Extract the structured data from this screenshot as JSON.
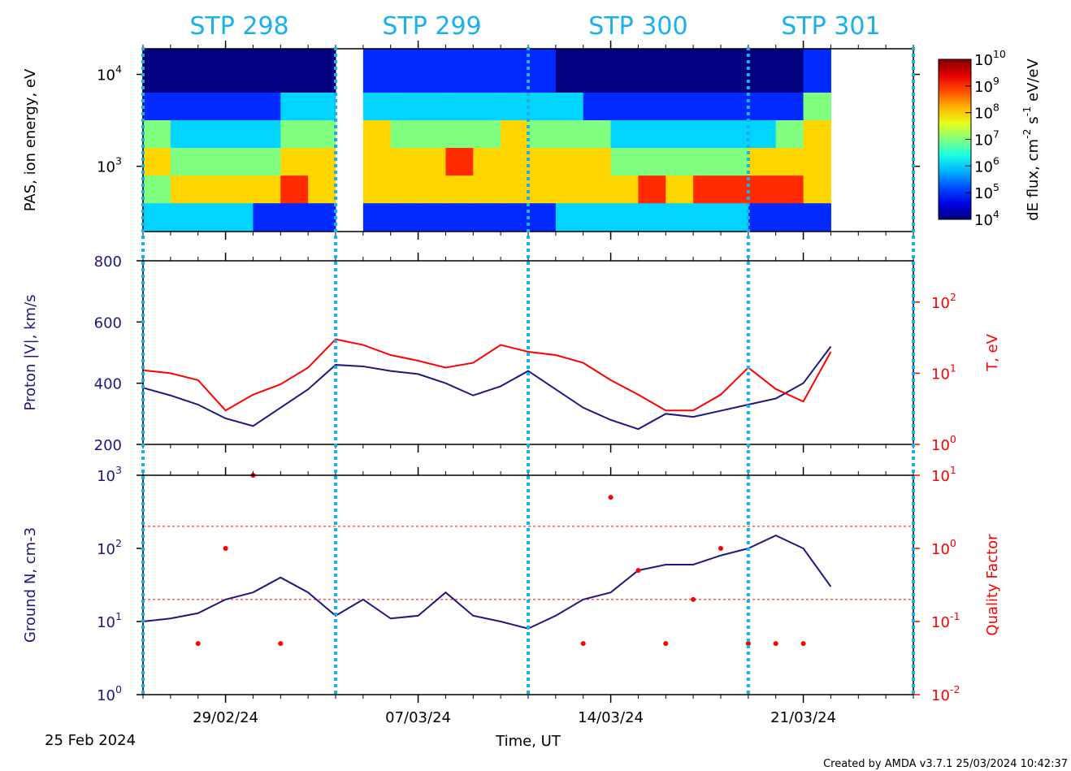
{
  "chart_data": [
    {
      "type": "heatmap",
      "ylabel": "PAS, ion energy, eV",
      "log_y": true,
      "ylim": [
        195,
        19000
      ],
      "yticks": [
        {
          "value": 1000,
          "label": "10^3"
        },
        {
          "value": 10000,
          "label": "10^4"
        }
      ],
      "xlim": [
        "2024-02-26",
        "2024-03-25"
      ],
      "xbins": [
        "2024-02-26",
        "2024-02-27",
        "2024-02-28",
        "2024-02-29",
        "2024-03-01",
        "2024-03-02",
        "2024-03-03",
        "2024-03-04",
        "2024-03-05",
        "2024-03-06",
        "2024-03-07",
        "2024-03-08",
        "2024-03-09",
        "2024-03-10",
        "2024-03-11",
        "2024-03-12",
        "2024-03-13",
        "2024-03-14",
        "2024-03-15",
        "2024-03-16",
        "2024-03-17",
        "2024-03-18",
        "2024-03-19",
        "2024-03-20",
        "2024-03-21",
        "2024-03-22",
        "2024-03-23",
        "2024-03-24",
        "2024-03-25"
      ],
      "ybins": [
        195,
        400,
        800,
        1600,
        3200,
        6400,
        19000
      ],
      "z": [
        [
          1000000.0,
          1000000.0,
          1000000.0,
          1000000.0,
          100000.0,
          100000.0,
          100000.0,
          null,
          100000.0,
          100000.0,
          100000.0,
          100000.0,
          100000.0,
          100000.0,
          100000.0,
          1000000.0,
          1000000.0,
          1000000.0,
          1000000.0,
          1000000.0,
          1000000.0,
          1000000.0,
          100000.0,
          100000.0,
          100000.0,
          null,
          null,
          null
        ],
        [
          10000000.0,
          100000000.0,
          100000000.0,
          100000000.0,
          100000000.0,
          1000000000.0,
          100000000.0,
          null,
          100000000.0,
          100000000.0,
          100000000.0,
          100000000.0,
          100000000.0,
          100000000.0,
          100000000.0,
          100000000.0,
          100000000.0,
          100000000.0,
          1000000000.0,
          100000000.0,
          1000000000.0,
          1000000000.0,
          1000000000.0,
          1000000000.0,
          100000000.0,
          null,
          null,
          null
        ],
        [
          100000000.0,
          10000000.0,
          10000000.0,
          10000000.0,
          10000000.0,
          100000000.0,
          100000000.0,
          null,
          100000000.0,
          100000000.0,
          100000000.0,
          1000000000.0,
          100000000.0,
          100000000.0,
          100000000.0,
          100000000.0,
          100000000.0,
          10000000.0,
          10000000.0,
          10000000.0,
          10000000.0,
          10000000.0,
          100000000.0,
          100000000.0,
          100000000.0,
          null,
          null,
          null
        ],
        [
          10000000.0,
          1000000.0,
          1000000.0,
          1000000.0,
          1000000.0,
          10000000.0,
          10000000.0,
          null,
          100000000.0,
          10000000.0,
          10000000.0,
          10000000.0,
          10000000.0,
          100000000.0,
          10000000.0,
          10000000.0,
          10000000.0,
          1000000.0,
          1000000.0,
          1000000.0,
          1000000.0,
          1000000.0,
          1000000.0,
          10000000.0,
          100000000.0,
          null,
          null,
          null
        ],
        [
          100000.0,
          100000.0,
          100000.0,
          100000.0,
          100000.0,
          1000000.0,
          1000000.0,
          null,
          1000000.0,
          1000000.0,
          1000000.0,
          1000000.0,
          1000000.0,
          1000000.0,
          1000000.0,
          1000000.0,
          100000.0,
          100000.0,
          100000.0,
          100000.0,
          100000.0,
          100000.0,
          100000.0,
          100000.0,
          10000000.0,
          null,
          null,
          null
        ],
        [
          10000.0,
          10000.0,
          10000.0,
          10000.0,
          10000.0,
          10000.0,
          10000.0,
          null,
          100000.0,
          100000.0,
          100000.0,
          100000.0,
          100000.0,
          100000.0,
          100000.0,
          10000.0,
          10000.0,
          10000.0,
          10000.0,
          10000.0,
          10000.0,
          10000.0,
          10000.0,
          10000.0,
          100000.0,
          null,
          null,
          null
        ]
      ],
      "colorbar_label": "dE flux, cm^-2 s^-1 eV/eV",
      "zlim": [
        10000,
        10000000000
      ],
      "zticks": [
        {
          "value": 10000,
          "label": "10^4"
        },
        {
          "value": 100000,
          "label": "10^5"
        },
        {
          "value": 1000000,
          "label": "10^6"
        },
        {
          "value": 10000000,
          "label": "10^7"
        },
        {
          "value": 100000000,
          "label": "10^8"
        },
        {
          "value": 1000000000,
          "label": "10^9"
        },
        {
          "value": 10000000000,
          "label": "10^10"
        }
      ],
      "colormap": "jet",
      "stp_color": "#1ab0e8",
      "stp_periods": [
        {
          "label": "STP 298",
          "start": "2024-02-26",
          "end": "2024-03-04"
        },
        {
          "label": "STP 299",
          "start": "2024-03-04",
          "end": "2024-03-11"
        },
        {
          "label": "STP 300",
          "start": "2024-03-11",
          "end": "2024-03-19"
        },
        {
          "label": "STP 301",
          "start": "2024-03-19",
          "end": "2024-03-25"
        }
      ]
    },
    {
      "type": "line",
      "ylabel": "Proton |V|, km/s",
      "y2label": "T, eV",
      "xlim": [
        "2024-02-26",
        "2024-03-25"
      ],
      "x": [
        "2024-02-26",
        "2024-02-27",
        "2024-02-28",
        "2024-02-29",
        "2024-03-01",
        "2024-03-02",
        "2024-03-03",
        "2024-03-04",
        "2024-03-05",
        "2024-03-06",
        "2024-03-07",
        "2024-03-08",
        "2024-03-09",
        "2024-03-10",
        "2024-03-11",
        "2024-03-12",
        "2024-03-13",
        "2024-03-14",
        "2024-03-15",
        "2024-03-16",
        "2024-03-17",
        "2024-03-18",
        "2024-03-19",
        "2024-03-20",
        "2024-03-21",
        "2024-03-22"
      ],
      "ylim": [
        200,
        800
      ],
      "yticks": [
        200,
        400,
        600,
        800
      ],
      "log_y2": true,
      "y2lim": [
        1,
        380
      ],
      "y2ticks": [
        {
          "value": 1,
          "label": "10^0"
        },
        {
          "value": 10,
          "label": "10^1"
        },
        {
          "value": 100,
          "label": "10^2"
        }
      ],
      "series": [
        {
          "color": "#1a1a80",
          "axis": "y",
          "values": [
            385,
            360,
            330,
            285,
            260,
            320,
            380,
            460,
            455,
            440,
            430,
            400,
            360,
            390,
            440,
            380,
            320,
            280,
            250,
            300,
            290,
            310,
            330,
            350,
            400,
            520
          ]
        },
        {
          "color": "#ff0000",
          "axis": "y2",
          "values": [
            11,
            10,
            8,
            3,
            5,
            7,
            12,
            30,
            25,
            18,
            15,
            12,
            14,
            25,
            20,
            18,
            14,
            8,
            5,
            3,
            3,
            5,
            12,
            6,
            4,
            20
          ]
        }
      ]
    },
    {
      "type": "line",
      "ylabel": "Ground N, cm-3",
      "y2label": "Quality Factor",
      "xlabel": "Time, UT",
      "start_label": "25 Feb 2024",
      "xlim": [
        "2024-02-26",
        "2024-03-25"
      ],
      "xticks": [
        {
          "value": "2024-02-29",
          "label": "29/02/24"
        },
        {
          "value": "2024-03-07",
          "label": "07/03/24"
        },
        {
          "value": "2024-03-14",
          "label": "14/03/24"
        },
        {
          "value": "2024-03-21",
          "label": "21/03/24"
        }
      ],
      "x": [
        "2024-02-26",
        "2024-02-27",
        "2024-02-28",
        "2024-02-29",
        "2024-03-01",
        "2024-03-02",
        "2024-03-03",
        "2024-03-04",
        "2024-03-05",
        "2024-03-06",
        "2024-03-07",
        "2024-03-08",
        "2024-03-09",
        "2024-03-10",
        "2024-03-11",
        "2024-03-12",
        "2024-03-13",
        "2024-03-14",
        "2024-03-15",
        "2024-03-16",
        "2024-03-17",
        "2024-03-18",
        "2024-03-19",
        "2024-03-20",
        "2024-03-21",
        "2024-03-22"
      ],
      "log_y": true,
      "ylim": [
        1,
        1000
      ],
      "yticks": [
        {
          "value": 1,
          "label": "10^0"
        },
        {
          "value": 10,
          "label": "10^1"
        },
        {
          "value": 100,
          "label": "10^2"
        },
        {
          "value": 1000,
          "label": "10^3"
        }
      ],
      "log_y2": true,
      "y2lim": [
        0.01,
        10
      ],
      "y2ticks": [
        {
          "value": 0.01,
          "label": "10^-2"
        },
        {
          "value": 0.1,
          "label": "10^-1"
        },
        {
          "value": 1,
          "label": "10^0"
        },
        {
          "value": 10,
          "label": "10^1"
        }
      ],
      "reference_lines": [
        0.2,
        2
      ],
      "series": [
        {
          "color": "#1a1a80",
          "axis": "y",
          "values": [
            10,
            11,
            13,
            20,
            25,
            40,
            25,
            12,
            20,
            11,
            12,
            25,
            12,
            10,
            8,
            12,
            20,
            25,
            50,
            60,
            60,
            80,
            100,
            150,
            100,
            30
          ]
        },
        {
          "color": "#ff0000",
          "axis": "y2",
          "kind": "scatter",
          "values": [
            null,
            null,
            0.05,
            1,
            10,
            0.05,
            null,
            null,
            null,
            null,
            null,
            null,
            null,
            null,
            null,
            null,
            0.05,
            5,
            0.5,
            0.05,
            0.2,
            1,
            0.05,
            0.05,
            0.05,
            null
          ]
        }
      ]
    }
  ],
  "footer": "Created by AMDA v3.7.1 25/03/2024 10:42:37"
}
